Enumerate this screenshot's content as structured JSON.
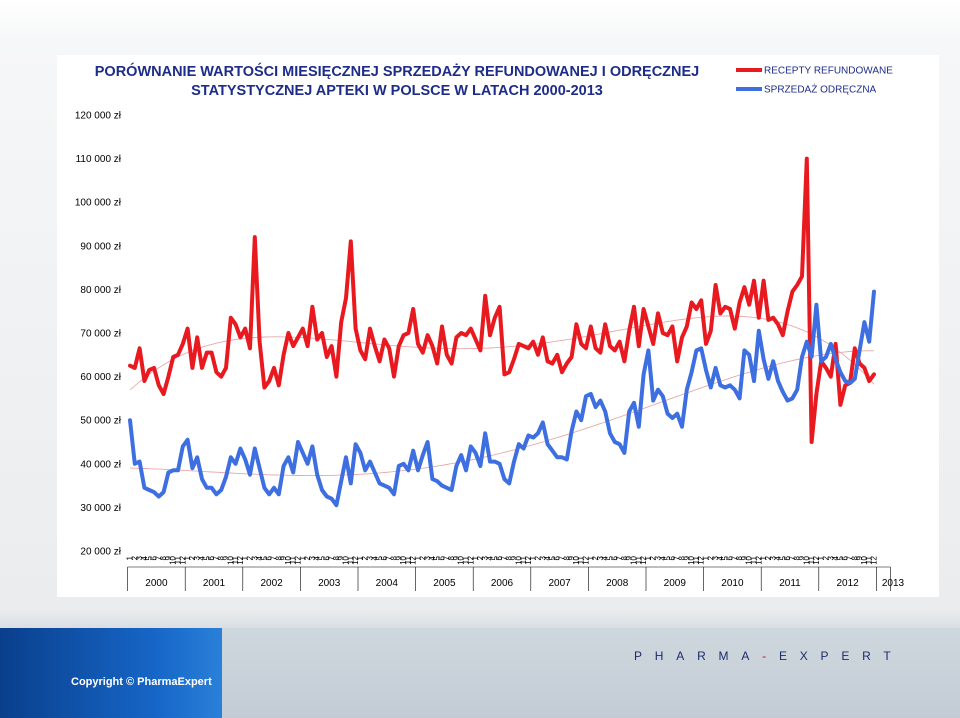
{
  "title_line1": "PORÓWNANIE WARTOŚCI MIESIĘCZNEJ SPRZEDAŻY REFUNDOWANEJ I ODRĘCZNEJ",
  "title_line2": "STATYSTYCZNEJ APTEKI W POLSCE W LATACH 2000-2013",
  "legend": [
    {
      "label": "RECEPTY REFUNDOWANE",
      "color": "#e8191f"
    },
    {
      "label": "SPRZEDAŻ ODRĘCZNA",
      "color": "#3d6fe0"
    }
  ],
  "footer": {
    "copyright": "Copyright © PharmaExpert",
    "brand_left": "PHARMA",
    "brand_sep": "-",
    "brand_right": "EXPERT"
  },
  "chart_data": {
    "type": "line",
    "title": "PORÓWNANIE WARTOŚCI MIESIĘCZNEJ SPRZEDAŻY REFUNDOWANEJ I ODRĘCZNEJ STATYSTYCZNEJ APTEKI W POLSCE W LATACH 2000-2013",
    "ylim": [
      20000,
      120000
    ],
    "yticks": [
      20000,
      30000,
      40000,
      50000,
      60000,
      70000,
      80000,
      90000,
      100000,
      110000,
      120000
    ],
    "ytick_labels": [
      "20 000 zł",
      "30 000 zł",
      "40 000 zł",
      "50 000 zł",
      "60 000 zł",
      "70 000 zł",
      "80 000 zł",
      "90 000 zł",
      "100 000 zł",
      "110 000 zł",
      "120 000 zł"
    ],
    "month_ticks": [
      "1",
      "2",
      "3",
      "4",
      "5",
      "6",
      "7",
      "8",
      "9",
      "10",
      "11",
      "12"
    ],
    "years": [
      "2000",
      "2001",
      "2002",
      "2003",
      "2004",
      "2005",
      "2006",
      "2007",
      "2008",
      "2009",
      "2010",
      "2011",
      "2012",
      "2013"
    ],
    "months_in_last_year": 4,
    "grid": false,
    "legend_position": "top-right",
    "trendline_color": "#e8a8a8",
    "series": [
      {
        "name": "RECEPTY REFUNDOWANE",
        "color": "#e8191f",
        "values": [
          62500,
          62000,
          66500,
          59000,
          61500,
          62000,
          58000,
          56000,
          60000,
          64500,
          65000,
          67500,
          71000,
          62000,
          69000,
          62000,
          65500,
          65500,
          61000,
          60000,
          62000,
          73500,
          72000,
          69000,
          71000,
          66500,
          92000,
          68000,
          57500,
          59000,
          62000,
          58000,
          65000,
          70000,
          67000,
          69000,
          71000,
          67000,
          76000,
          68500,
          70000,
          64500,
          67000,
          60000,
          72500,
          78000,
          91000,
          71000,
          66000,
          64000,
          71000,
          67000,
          63500,
          68500,
          66500,
          60000,
          67000,
          69500,
          70000,
          75500,
          67500,
          65500,
          69500,
          67000,
          63000,
          71500,
          65000,
          63000,
          69000,
          70000,
          69500,
          71000,
          68500,
          66000,
          78500,
          69500,
          73500,
          76000,
          60500,
          61000,
          64000,
          67500,
          67000,
          66500,
          68000,
          65000,
          69000,
          63500,
          63000,
          65000,
          61000,
          63000,
          64500,
          72000,
          67500,
          66500,
          71500,
          66500,
          65500,
          72000,
          67000,
          66000,
          68000,
          63500,
          70500,
          76000,
          67000,
          75500,
          71500,
          67500,
          74500,
          70000,
          69500,
          71500,
          63500,
          69000,
          71500,
          77000,
          75500,
          77500,
          67500,
          70500,
          81000,
          74500,
          76000,
          75500,
          71000,
          77000,
          80500,
          76500,
          82000,
          73500,
          82000,
          73000,
          73500,
          72000,
          69500,
          75000,
          79500,
          81000,
          83000,
          110000,
          45000,
          56000,
          63500,
          62000,
          60000,
          67500,
          53500,
          58000,
          58500,
          66500,
          63000,
          62000,
          59000,
          60500
        ]
      },
      {
        "name": "SPRZEDAŻ ODRĘCZNA",
        "color": "#3d6fe0",
        "values": [
          50000,
          40000,
          40500,
          34500,
          34000,
          33500,
          32500,
          33500,
          38000,
          38500,
          38500,
          44000,
          45500,
          39000,
          41500,
          36500,
          34500,
          34500,
          33000,
          34000,
          37000,
          41500,
          40000,
          43500,
          41000,
          37500,
          43500,
          39000,
          34500,
          33000,
          34500,
          33000,
          39500,
          41500,
          38000,
          45000,
          42500,
          40000,
          44000,
          37500,
          34000,
          32500,
          32000,
          30500,
          36000,
          41500,
          35500,
          44500,
          42500,
          38500,
          40500,
          38000,
          35500,
          35000,
          34500,
          33000,
          39500,
          40000,
          38500,
          43000,
          38500,
          42000,
          45000,
          36500,
          36000,
          35000,
          34500,
          34000,
          39500,
          42000,
          38500,
          44000,
          42500,
          39500,
          47000,
          40500,
          40500,
          40000,
          36500,
          35500,
          40500,
          44500,
          43500,
          46500,
          46000,
          47000,
          49500,
          44500,
          43000,
          41500,
          41500,
          41000,
          47500,
          52000,
          50000,
          55500,
          56000,
          53000,
          54500,
          52000,
          47000,
          45000,
          44500,
          42500,
          52000,
          54000,
          48500,
          60500,
          66000,
          54500,
          57000,
          55500,
          51500,
          50500,
          51500,
          48500,
          57000,
          61000,
          66000,
          66500,
          61500,
          57500,
          62000,
          58000,
          57500,
          58000,
          57000,
          55000,
          66000,
          65000,
          59000,
          70500,
          64000,
          59500,
          63500,
          59000,
          56500,
          54500,
          55000,
          57000,
          64500,
          68000,
          64500,
          76500,
          63500,
          64500,
          67500,
          64000,
          61000,
          59000,
          58500,
          59500,
          66000,
          72500,
          68000,
          79500
        ]
      }
    ]
  }
}
